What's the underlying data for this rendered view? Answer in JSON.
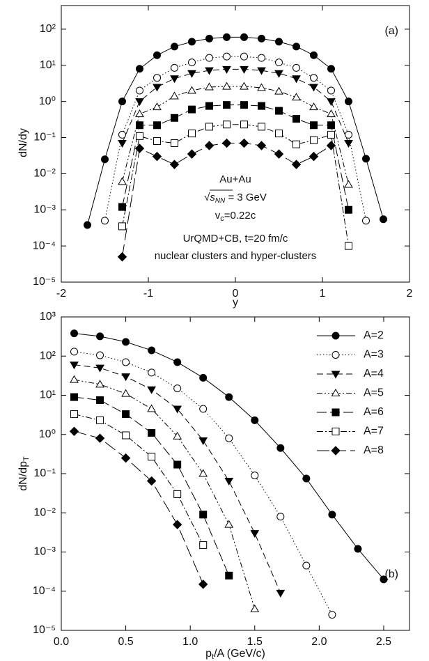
{
  "chart_data": [
    {
      "type": "line",
      "panel_label": "(a)",
      "xlabel": "y",
      "ylabel": "dN/dy",
      "log_y": true,
      "xlim": [
        -2,
        2
      ],
      "xticks": [
        -2,
        -1,
        0,
        1,
        2
      ],
      "ylim": [
        1e-05,
        450
      ],
      "yticks": [
        {
          "value": 1e-05,
          "label": "10⁻⁵"
        },
        {
          "value": 0.0001,
          "label": "10⁻⁴"
        },
        {
          "value": 0.001,
          "label": "10⁻³"
        },
        {
          "value": 0.01,
          "label": "10⁻²"
        },
        {
          "value": 0.1,
          "label": "10⁻¹"
        },
        {
          "value": 1,
          "label": "10⁰"
        },
        {
          "value": 10,
          "label": "10¹"
        },
        {
          "value": 100,
          "label": "10²"
        }
      ],
      "annotations": [
        [
          {
            "text": "Au+Au"
          }
        ],
        [
          {
            "text": "√"
          },
          {
            "text": "s"
          },
          {
            "text": "NN",
            "sub": true
          },
          {
            "text": " = 3 GeV"
          }
        ],
        [
          {
            "text": "v"
          },
          {
            "text": "c",
            "sub": true
          },
          {
            "text": "=0.22c"
          }
        ],
        [
          {
            "text": "UrQMD+CB, t=20 fm/c"
          }
        ],
        [
          {
            "text": "nuclear clusters and hyper-clusters"
          }
        ]
      ],
      "series": [
        {
          "color": "#000",
          "marker": "circle",
          "filled": true,
          "dash": "solid",
          "x": [
            -1.7,
            -1.5,
            -1.3,
            -1.1,
            -0.9,
            -0.7,
            -0.5,
            -0.3,
            -0.1,
            0.1,
            0.3,
            0.5,
            0.7,
            0.9,
            1.1,
            1.3,
            1.5,
            1.7
          ],
          "values": [
            0.00038,
            0.025,
            1.0,
            8,
            19,
            33,
            45,
            55,
            60,
            60,
            55,
            45,
            33,
            19,
            8,
            1.0,
            0.026,
            0.00055
          ]
        },
        {
          "color": "#000",
          "marker": "circle",
          "filled": false,
          "dash": "dotted",
          "x": [
            -1.5,
            -1.3,
            -1.1,
            -0.9,
            -0.7,
            -0.5,
            -0.3,
            -0.1,
            0.1,
            0.3,
            0.5,
            0.7,
            0.9,
            1.1,
            1.3,
            1.5
          ],
          "values": [
            0.0005,
            0.12,
            2,
            4.5,
            8.5,
            12,
            16,
            17.5,
            17.5,
            16,
            12,
            8.5,
            4.5,
            2,
            0.12,
            0.0005
          ]
        },
        {
          "color": "#000",
          "marker": "triangle-down",
          "filled": true,
          "dash": "dashed",
          "x": [
            -1.3,
            -1.1,
            -0.9,
            -0.7,
            -0.5,
            -0.3,
            -0.1,
            0.1,
            0.3,
            0.5,
            0.7,
            0.9,
            1.1,
            1.3
          ],
          "values": [
            0.07,
            1.0,
            2.5,
            4.3,
            6,
            7.2,
            7.8,
            7.8,
            7.2,
            6,
            4.3,
            2.5,
            1.0,
            0.07
          ]
        },
        {
          "color": "#000",
          "marker": "triangle-up",
          "filled": false,
          "dash": "dash-dot-dot",
          "x": [
            -1.3,
            -1.1,
            -0.9,
            -0.7,
            -0.5,
            -0.3,
            -0.1,
            0.1,
            0.3,
            0.5,
            0.7,
            0.9,
            1.1,
            1.3
          ],
          "values": [
            0.006,
            0.45,
            0.7,
            1.4,
            2,
            2.5,
            2.6,
            2.6,
            2.4,
            1.9,
            1.3,
            0.7,
            0.45,
            0.005
          ]
        },
        {
          "color": "#000",
          "marker": "square",
          "filled": true,
          "dash": "long-dash",
          "x": [
            -1.3,
            -1.1,
            -0.9,
            -0.7,
            -0.5,
            -0.3,
            -0.1,
            0.1,
            0.3,
            0.5,
            0.7,
            0.9,
            1.1,
            1.3
          ],
          "values": [
            0.0012,
            0.22,
            0.22,
            0.35,
            0.6,
            0.75,
            0.8,
            0.8,
            0.75,
            0.55,
            0.33,
            0.22,
            0.22,
            0.001
          ]
        },
        {
          "color": "#000",
          "marker": "square",
          "filled": false,
          "dash": "dash-dot",
          "x": [
            -1.3,
            -1.1,
            -0.9,
            -0.7,
            -0.5,
            -0.3,
            -0.1,
            0.1,
            0.3,
            0.5,
            0.7,
            0.9,
            1.1,
            1.3
          ],
          "values": [
            0.00035,
            0.11,
            0.08,
            0.07,
            0.13,
            0.2,
            0.23,
            0.23,
            0.2,
            0.13,
            0.065,
            0.085,
            0.12,
            0.0001
          ]
        },
        {
          "color": "#000",
          "marker": "diamond",
          "filled": true,
          "dash": "long-dash-2",
          "x": [
            -1.3,
            -1.1,
            -0.9,
            -0.7,
            -0.5,
            -0.3,
            -0.1,
            0.1,
            0.3,
            0.5,
            0.7,
            0.9,
            1.1
          ],
          "values": [
            5e-05,
            0.05,
            0.03,
            0.018,
            0.035,
            0.06,
            0.07,
            0.07,
            0.06,
            0.035,
            0.018,
            0.03,
            0.06
          ]
        }
      ]
    },
    {
      "type": "line",
      "panel_label": "(b)",
      "log_y": true,
      "legend": "upper right",
      "xlabel": [
        {
          "text": "p"
        },
        {
          "text": "t",
          "sub": true
        },
        {
          "text": "/A (GeV/c)"
        }
      ],
      "ylabel": [
        {
          "text": "dN/dp"
        },
        {
          "text": "T",
          "sub": true
        }
      ],
      "xlim": [
        0,
        2.7
      ],
      "xticks": [
        {
          "value": 0,
          "label": "0.0"
        },
        0.5,
        {
          "value": 1,
          "label": "1.0"
        },
        1.5,
        {
          "value": 2,
          "label": "2.0"
        },
        2.5
      ],
      "ylim": [
        1e-05,
        1000
      ],
      "yticks": [
        {
          "value": 1e-05,
          "label": "10⁻⁵"
        },
        {
          "value": 0.0001,
          "label": "10⁻⁴"
        },
        {
          "value": 0.001,
          "label": "10⁻³"
        },
        {
          "value": 0.01,
          "label": "10⁻²"
        },
        {
          "value": 0.1,
          "label": "10⁻¹"
        },
        {
          "value": 1,
          "label": "10⁰"
        },
        {
          "value": 10,
          "label": "10¹"
        },
        {
          "value": 100,
          "label": "10²"
        },
        {
          "value": 1000,
          "label": "10³"
        }
      ],
      "series": [
        {
          "name": "A=2",
          "color": "#000",
          "marker": "circle",
          "filled": true,
          "dash": "solid",
          "x": [
            0.1,
            0.3,
            0.5,
            0.7,
            0.9,
            1.1,
            1.3,
            1.5,
            1.7,
            1.9,
            2.1,
            2.3,
            2.5
          ],
          "values": [
            380,
            320,
            230,
            140,
            70,
            28,
            9,
            2.3,
            0.45,
            0.075,
            0.009,
            0.0012,
            0.0002
          ]
        },
        {
          "name": "A=3",
          "color": "#000",
          "marker": "circle",
          "filled": false,
          "dash": "dotted",
          "x": [
            0.1,
            0.3,
            0.5,
            0.7,
            0.9,
            1.1,
            1.3,
            1.5,
            1.7,
            1.9,
            2.1
          ],
          "values": [
            130,
            105,
            70,
            38,
            15,
            4.5,
            0.8,
            0.09,
            0.008,
            0.00045,
            2.5e-05
          ]
        },
        {
          "name": "A=4",
          "color": "#000",
          "marker": "triangle-down",
          "filled": true,
          "dash": "dashed",
          "x": [
            0.1,
            0.3,
            0.5,
            0.7,
            0.9,
            1.1,
            1.3,
            1.5,
            1.7
          ],
          "values": [
            60,
            50,
            30,
            14,
            4.5,
            0.7,
            0.065,
            0.003,
            9e-05
          ]
        },
        {
          "name": "A=5",
          "color": "#000",
          "marker": "triangle-up",
          "filled": false,
          "dash": "dash-dot-dot",
          "x": [
            0.1,
            0.3,
            0.5,
            0.7,
            0.9,
            1.1,
            1.3,
            1.5
          ],
          "values": [
            25,
            19,
            11,
            4.5,
            0.9,
            0.1,
            0.005,
            3.5e-05
          ]
        },
        {
          "name": "A=6",
          "color": "#000",
          "marker": "square",
          "filled": true,
          "dash": "long-dash",
          "x": [
            0.1,
            0.3,
            0.5,
            0.7,
            0.9,
            1.1,
            1.3
          ],
          "values": [
            9,
            7.5,
            3.3,
            1.1,
            0.17,
            0.009,
            0.00025
          ]
        },
        {
          "name": "A=7",
          "color": "#000",
          "marker": "square",
          "filled": false,
          "dash": "dash-dot",
          "x": [
            0.1,
            0.3,
            0.5,
            0.7,
            0.9,
            1.1
          ],
          "values": [
            3.3,
            2.3,
            0.95,
            0.27,
            0.03,
            0.0015
          ]
        },
        {
          "name": "A=8",
          "color": "#000",
          "marker": "diamond",
          "filled": true,
          "dash": "long-dash-2",
          "x": [
            0.1,
            0.3,
            0.5,
            0.7,
            0.9,
            1.1
          ],
          "values": [
            1.2,
            0.8,
            0.25,
            0.065,
            0.005,
            0.00015
          ]
        }
      ]
    }
  ]
}
